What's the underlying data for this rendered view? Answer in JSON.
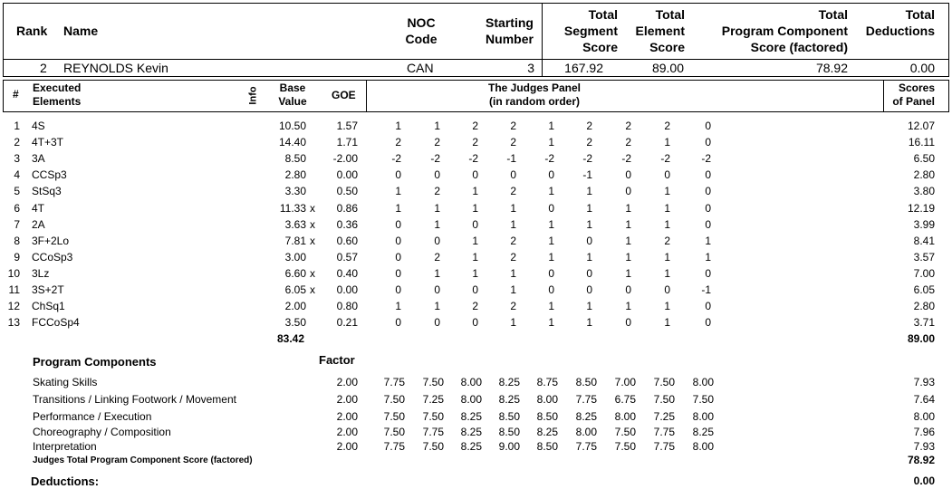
{
  "header": {
    "rank": "Rank",
    "name": "Name",
    "noc_line1": "NOC",
    "noc_line2": "Code",
    "start_line1": "Starting",
    "start_line2": "Number",
    "tss_line1": "Total",
    "tss_line2": "Segment",
    "tss_line3": "Score",
    "tes_line1": "Total",
    "tes_line2": "Element",
    "tes_line3": "Score",
    "pcs_line1": "Total",
    "pcs_line2": "Program  Component",
    "pcs_line3": "Score (factored)",
    "ded_line1": "Total",
    "ded_line2": "Deductions"
  },
  "skater": {
    "rank": "2",
    "name": "REYNOLDS Kevin",
    "noc": "CAN",
    "start": "3",
    "tss": "167.92",
    "tes": "89.00",
    "pcs": "78.92",
    "ded": "0.00"
  },
  "elements_header": {
    "num": "#",
    "exec_line1": "Executed",
    "exec_line2": "Elements",
    "info": "Info",
    "base_line1": "Base",
    "base_line2": "Value",
    "goe": "GOE",
    "panel_line1": "The Judges Panel",
    "panel_line2": "(in random order)",
    "sop_line1": "Scores",
    "sop_line2": "of Panel"
  },
  "elements": [
    {
      "num": "1",
      "name": "4S",
      "base": "10.50",
      "x": "",
      "goe": "1.57",
      "j": [
        "1",
        "1",
        "2",
        "2",
        "1",
        "2",
        "2",
        "2",
        "0"
      ],
      "score": "12.07"
    },
    {
      "num": "2",
      "name": "4T+3T",
      "base": "14.40",
      "x": "",
      "goe": "1.71",
      "j": [
        "2",
        "2",
        "2",
        "2",
        "1",
        "2",
        "2",
        "1",
        "0"
      ],
      "score": "16.11"
    },
    {
      "num": "3",
      "name": "3A",
      "base": "8.50",
      "x": "",
      "goe": "-2.00",
      "j": [
        "-2",
        "-2",
        "-2",
        "-1",
        "-2",
        "-2",
        "-2",
        "-2",
        "-2"
      ],
      "score": "6.50"
    },
    {
      "num": "4",
      "name": "CCSp3",
      "base": "2.80",
      "x": "",
      "goe": "0.00",
      "j": [
        "0",
        "0",
        "0",
        "0",
        "0",
        "-1",
        "0",
        "0",
        "0"
      ],
      "score": "2.80"
    },
    {
      "num": "5",
      "name": "StSq3",
      "base": "3.30",
      "x": "",
      "goe": "0.50",
      "j": [
        "1",
        "2",
        "1",
        "2",
        "1",
        "1",
        "0",
        "1",
        "0"
      ],
      "score": "3.80"
    },
    {
      "num": "6",
      "name": "4T",
      "base": "11.33",
      "x": "x",
      "goe": "0.86",
      "j": [
        "1",
        "1",
        "1",
        "1",
        "0",
        "1",
        "1",
        "1",
        "0"
      ],
      "score": "12.19"
    },
    {
      "num": "7",
      "name": "2A",
      "base": "3.63",
      "x": "x",
      "goe": "0.36",
      "j": [
        "0",
        "1",
        "0",
        "1",
        "1",
        "1",
        "1",
        "1",
        "0"
      ],
      "score": "3.99"
    },
    {
      "num": "8",
      "name": "3F+2Lo",
      "base": "7.81",
      "x": "x",
      "goe": "0.60",
      "j": [
        "0",
        "0",
        "1",
        "2",
        "1",
        "0",
        "1",
        "2",
        "1"
      ],
      "score": "8.41"
    },
    {
      "num": "9",
      "name": "CCoSp3",
      "base": "3.00",
      "x": "",
      "goe": "0.57",
      "j": [
        "0",
        "2",
        "1",
        "2",
        "1",
        "1",
        "1",
        "1",
        "1"
      ],
      "score": "3.57"
    },
    {
      "num": "10",
      "name": "3Lz",
      "base": "6.60",
      "x": "x",
      "goe": "0.40",
      "j": [
        "0",
        "1",
        "1",
        "1",
        "0",
        "0",
        "1",
        "1",
        "0"
      ],
      "score": "7.00"
    },
    {
      "num": "11",
      "name": "3S+2T",
      "base": "6.05",
      "x": "x",
      "goe": "0.00",
      "j": [
        "0",
        "0",
        "0",
        "1",
        "0",
        "0",
        "0",
        "0",
        "-1"
      ],
      "score": "6.05"
    },
    {
      "num": "12",
      "name": "ChSq1",
      "base": "2.00",
      "x": "",
      "goe": "0.80",
      "j": [
        "1",
        "1",
        "2",
        "2",
        "1",
        "1",
        "1",
        "1",
        "0"
      ],
      "score": "2.80"
    },
    {
      "num": "13",
      "name": "FCCoSp4",
      "base": "3.50",
      "x": "",
      "goe": "0.21",
      "j": [
        "0",
        "0",
        "0",
        "1",
        "1",
        "1",
        "0",
        "1",
        "0"
      ],
      "score": "3.71"
    }
  ],
  "elements_total_base": "83.42",
  "elements_total_score": "89.00",
  "program_components": {
    "title": "Program Components",
    "factor_label": "Factor",
    "items": [
      {
        "name": "Skating Skills",
        "factor": "2.00",
        "j": [
          "7.75",
          "7.50",
          "8.00",
          "8.25",
          "8.75",
          "8.50",
          "7.00",
          "7.50",
          "8.00"
        ],
        "score": "7.93"
      },
      {
        "name": "Transitions / Linking Footwork / Movement",
        "factor": "2.00",
        "j": [
          "7.50",
          "7.25",
          "8.00",
          "8.25",
          "8.00",
          "7.75",
          "6.75",
          "7.50",
          "7.50"
        ],
        "score": "7.64"
      },
      {
        "name": "Performance / Execution",
        "factor": "2.00",
        "j": [
          "7.50",
          "7.50",
          "8.25",
          "8.50",
          "8.50",
          "8.25",
          "8.00",
          "7.25",
          "8.00"
        ],
        "score": "8.00"
      },
      {
        "name": "Choreography / Composition",
        "factor": "2.00",
        "j": [
          "7.50",
          "7.75",
          "8.25",
          "8.50",
          "8.25",
          "8.00",
          "7.50",
          "7.75",
          "8.25"
        ],
        "score": "7.96"
      },
      {
        "name": "Interpretation",
        "factor": "2.00",
        "j": [
          "7.75",
          "7.50",
          "8.25",
          "9.00",
          "8.50",
          "7.75",
          "7.50",
          "7.75",
          "8.00"
        ],
        "score": "7.93"
      }
    ],
    "total_label": "Judges Total Program Component Score (factored)",
    "total_score": "78.92"
  },
  "deductions": {
    "label": "Deductions:",
    "value": "0.00"
  }
}
